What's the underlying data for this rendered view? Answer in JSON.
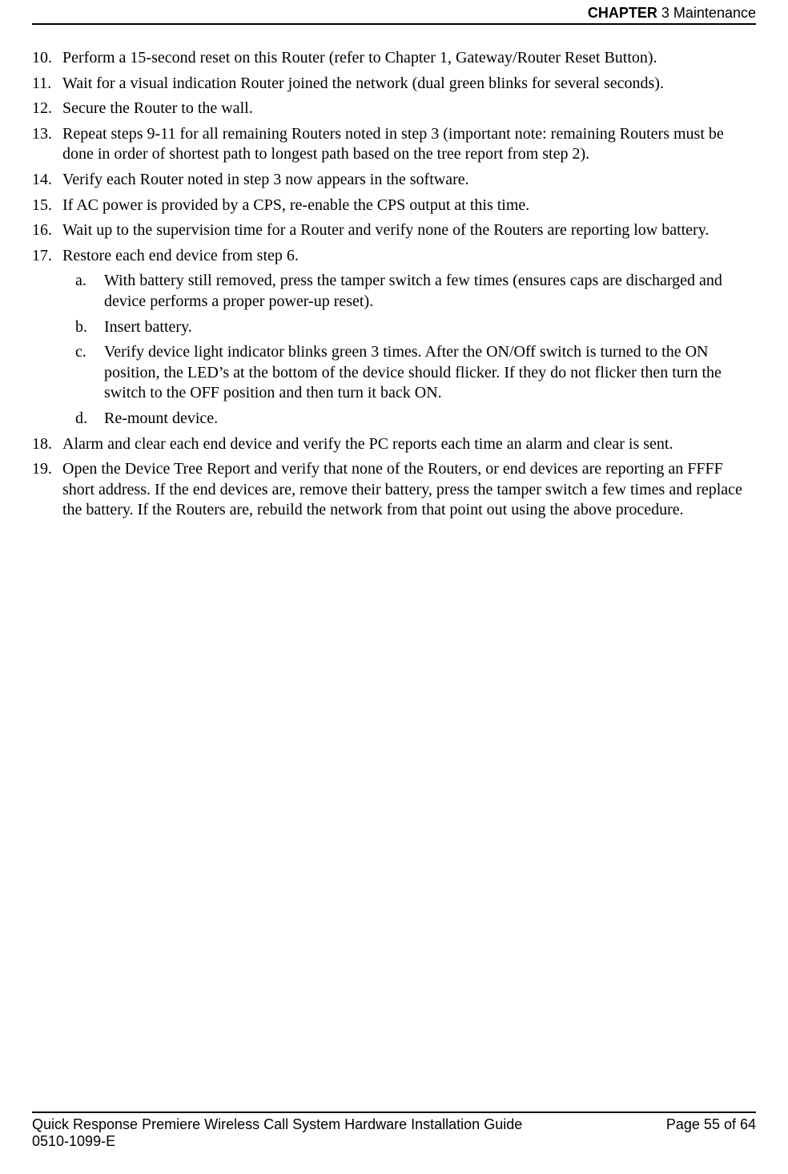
{
  "header": {
    "chapter_label": "CHAPTER",
    "chapter_rest": " 3 Maintenance"
  },
  "items": [
    {
      "n": "10.",
      "t": "Perform a 15-second reset on this Router (refer to Chapter 1, Gateway/Router Reset Button)."
    },
    {
      "n": "11.",
      "t": "Wait for a visual indication Router joined the network (dual green blinks for several seconds)."
    },
    {
      "n": "12.",
      "t": "Secure the Router to the wall."
    },
    {
      "n": "13.",
      "t": "Repeat steps 9-11 for all remaining Routers noted in step 3 (important note: remaining Routers must be done in order of shortest path to longest path based on the tree report from step 2)."
    },
    {
      "n": "14.",
      "t": "Verify each Router noted in step 3 now appears in the software."
    },
    {
      "n": "15.",
      "t": "If AC power is provided by a CPS, re-enable the CPS output at this time."
    },
    {
      "n": "16.",
      "t": "Wait up to the supervision time for a Router and verify none of the Routers are reporting low battery."
    },
    {
      "n": "17.",
      "t": "Restore each end device from step 6."
    }
  ],
  "subitems": [
    {
      "n": "a.",
      "t": "With battery still removed, press the tamper switch a few times (ensures caps are discharged and device performs a proper power-up reset)."
    },
    {
      "n": "b.",
      "t": "Insert battery."
    },
    {
      "n": "c.",
      "t": "Verify device light indicator blinks green 3 times. After the ON/Off switch is turned to the ON position, the LED’s at the bottom of the device should flicker. If they do not flicker then turn the switch to the OFF position and then turn it back ON."
    },
    {
      "n": "d.",
      "t": "Re-mount device."
    }
  ],
  "items2": [
    {
      "n": "18.",
      "t": "Alarm and clear each end device and verify the PC reports each time an alarm and clear is sent."
    },
    {
      "n": "19.",
      "t": "Open the Device Tree Report and verify that none of the Routers, or end devices are reporting an FFFF short address. If the end devices are, remove their battery, press the tamper switch a few times and replace the battery. If the Routers are, rebuild the network from that point out using the above procedure."
    }
  ],
  "footer": {
    "title": "Quick Response Premiere Wireless Call System Hardware Installation Guide",
    "docnum": "0510-1099-E",
    "page": "Page 55 of 64"
  }
}
